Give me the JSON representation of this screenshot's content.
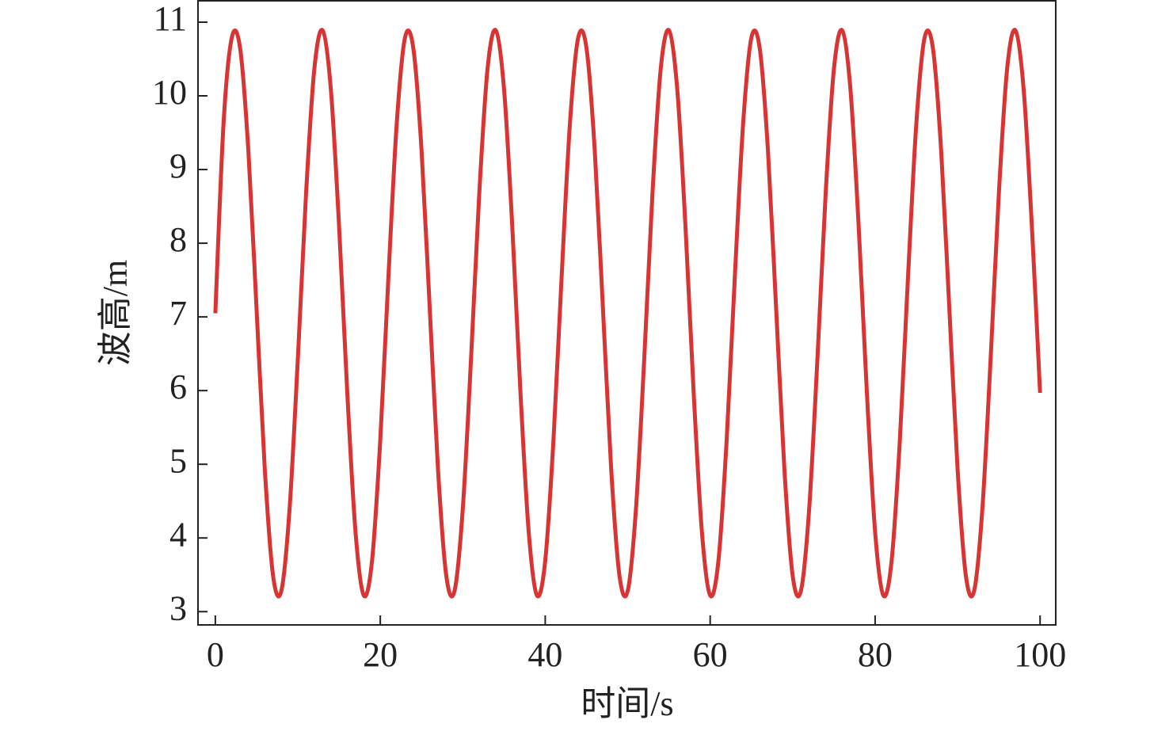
{
  "chart_data": {
    "type": "line",
    "xlabel": "时间/s",
    "ylabel": "波高/m",
    "x": [
      0,
      1,
      2,
      3,
      4,
      5,
      6,
      7,
      8,
      9,
      10,
      11,
      12,
      13,
      14,
      15,
      16,
      17,
      18,
      19,
      20,
      21,
      22,
      23,
      24,
      25,
      26,
      27,
      28,
      29,
      30,
      31,
      32,
      33,
      34,
      35,
      36,
      37,
      38,
      39,
      40,
      41,
      42,
      43,
      44,
      45,
      46,
      47,
      48,
      49,
      50,
      51,
      52,
      53,
      54,
      55,
      56,
      57,
      58,
      59,
      60,
      61,
      62,
      63,
      64,
      65,
      66,
      67,
      68,
      69,
      70,
      71,
      72,
      73,
      74,
      75,
      76,
      77,
      78,
      79,
      80,
      81,
      82,
      83,
      84,
      85,
      86,
      87,
      88,
      89,
      90,
      91,
      92,
      93,
      94,
      95,
      96,
      97,
      98,
      99,
      100
    ],
    "series": [
      {
        "name": "波高",
        "color": "#d93434",
        "values": [
          7.05,
          9.63,
          10.79,
          10.65,
          9.27,
          7.11,
          4.93,
          3.49,
          3.28,
          4.39,
          6.42,
          8.67,
          10.36,
          10.89,
          10.1,
          8.24,
          5.97,
          4.08,
          3.22,
          3.69,
          5.33,
          7.57,
          9.63,
          10.79,
          10.65,
          9.27,
          7.11,
          4.93,
          3.49,
          3.28,
          4.39,
          6.42,
          8.67,
          10.36,
          10.89,
          10.1,
          8.24,
          5.97,
          4.08,
          3.22,
          3.69,
          5.33,
          7.57,
          9.63,
          10.79,
          10.65,
          9.27,
          7.11,
          4.93,
          3.49,
          3.28,
          4.39,
          6.42,
          8.67,
          10.36,
          10.89,
          10.1,
          8.24,
          5.97,
          4.08,
          3.22,
          3.69,
          5.33,
          7.57,
          9.63,
          10.79,
          10.65,
          9.27,
          7.11,
          4.93,
          3.49,
          3.28,
          4.39,
          6.42,
          8.67,
          10.36,
          10.89,
          10.1,
          8.24,
          5.97,
          4.08,
          3.22,
          3.69,
          5.33,
          7.57,
          9.63,
          10.79,
          10.65,
          9.27,
          7.11,
          4.93,
          3.49,
          3.28,
          4.39,
          6.42,
          8.67,
          10.36,
          10.89,
          10.1,
          8.24,
          5.97
        ]
      }
    ],
    "xlim": [
      -2.1,
      101.9
    ],
    "xticks": [
      0,
      20,
      40,
      60,
      80,
      100
    ],
    "ylim": [
      2.82,
      11.29
    ],
    "yticks": [
      3,
      4,
      5,
      6,
      7,
      8,
      9,
      10,
      11
    ],
    "grid": false
  }
}
